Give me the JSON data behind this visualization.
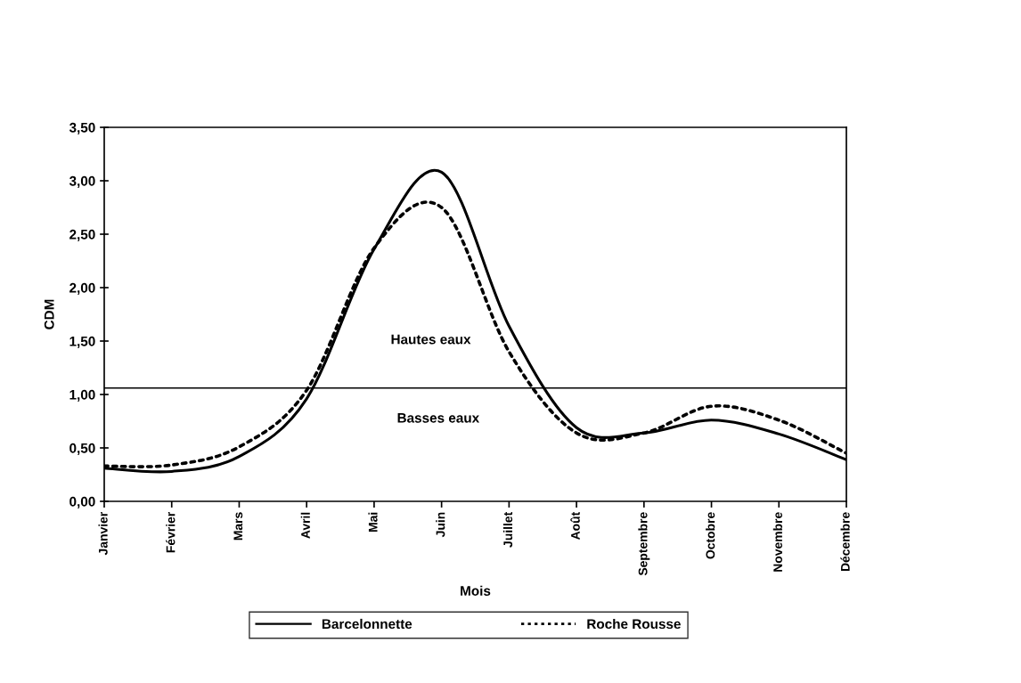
{
  "chart_data": {
    "type": "line",
    "xlabel": "Mois",
    "ylabel": "CDM",
    "categories": [
      "Janvier",
      "Février",
      "Mars",
      "Avril",
      "Mai",
      "Juin",
      "Juillet",
      "Août",
      "Septembre",
      "Octobre",
      "Novembre",
      "Décembre"
    ],
    "series": [
      {
        "name": "Barcelonnette",
        "color": "#000000",
        "line_style": "solid",
        "values": [
          0.31,
          0.28,
          0.42,
          0.96,
          2.36,
          3.08,
          1.64,
          0.69,
          0.64,
          0.76,
          0.63,
          0.39
        ]
      },
      {
        "name": "Roche Rousse",
        "color": "#000000",
        "line_style": "dotted",
        "values": [
          0.33,
          0.34,
          0.51,
          1.04,
          2.37,
          2.75,
          1.4,
          0.64,
          0.64,
          0.89,
          0.76,
          0.45
        ]
      }
    ],
    "ylim": [
      0,
      3.5
    ],
    "yticks": [
      {
        "value": 0,
        "label": "0,00"
      },
      {
        "value": 0.5,
        "label": "0,50"
      },
      {
        "value": 1,
        "label": "1,00"
      },
      {
        "value": 1.5,
        "label": "1,50"
      },
      {
        "value": 2,
        "label": "2,00"
      },
      {
        "value": 2.5,
        "label": "2,50"
      },
      {
        "value": 3,
        "label": "3,00"
      },
      {
        "value": 3.5,
        "label": "3,50"
      }
    ],
    "ref_lines": [
      {
        "axis": "y",
        "value": 1.06,
        "color": "#000000"
      }
    ],
    "annotations": [
      "Hautes eaux",
      "Basses eaux"
    ],
    "grid": false,
    "legend": "bottom",
    "marker": "none"
  }
}
